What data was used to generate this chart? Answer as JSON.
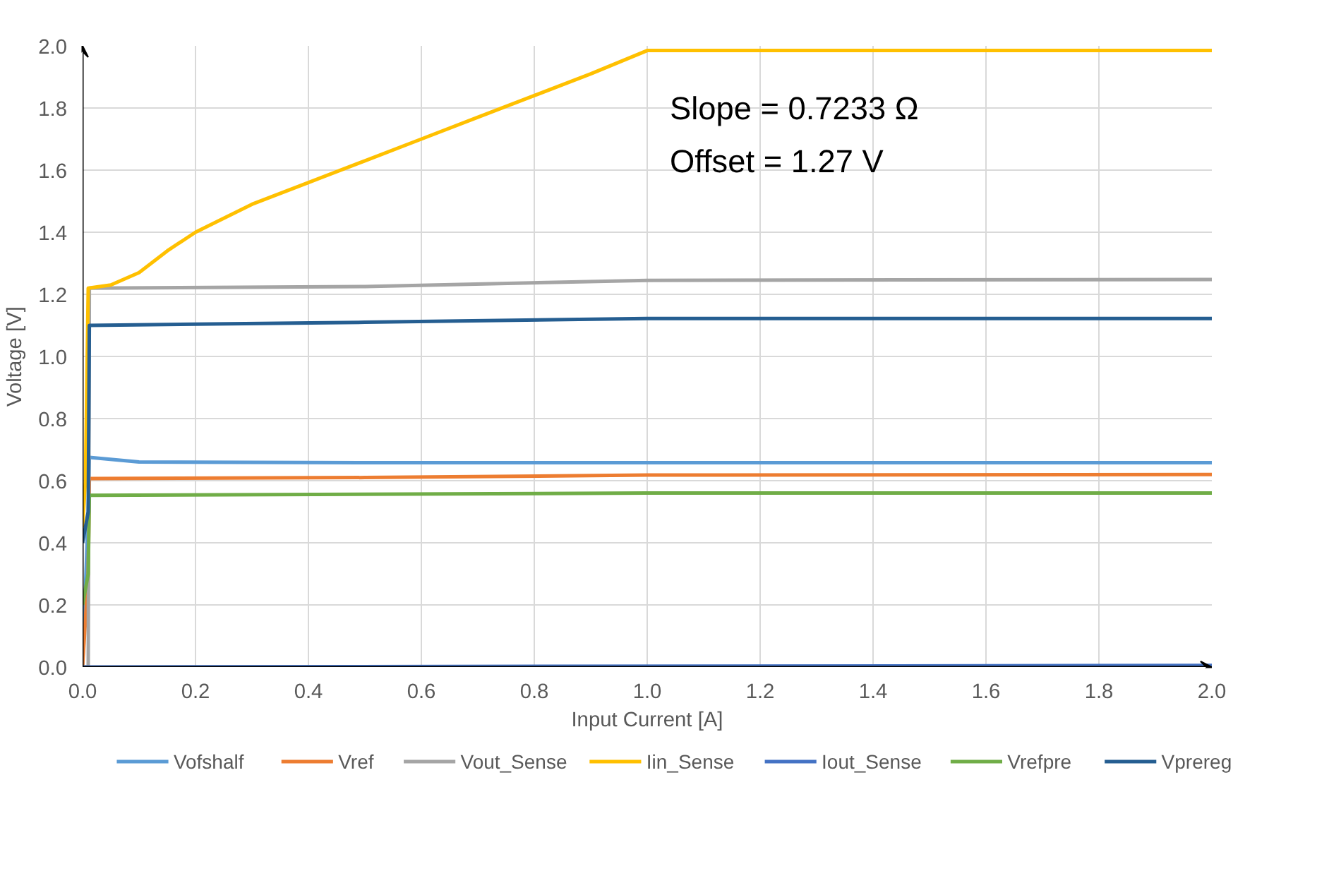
{
  "chart_data": {
    "type": "line",
    "xlabel": "Input Current [A]",
    "ylabel": "Voltage [V]",
    "xlim": [
      0,
      2.0
    ],
    "ylim": [
      0,
      2.0
    ],
    "xticks": [
      {
        "value": 0,
        "label": "0.0"
      },
      0.2,
      0.4,
      0.6,
      0.8,
      {
        "value": 1,
        "label": "1.0"
      },
      1.2,
      1.4,
      1.6,
      1.8,
      {
        "value": 2,
        "label": "2.0"
      }
    ],
    "yticks": [
      {
        "value": 0,
        "label": "0.0"
      },
      0.2,
      0.4,
      0.6,
      0.8,
      {
        "value": 1,
        "label": "1.0"
      },
      1.2,
      1.4,
      1.6,
      1.8,
      {
        "value": 2,
        "label": "2.0"
      }
    ],
    "grid": true,
    "legend": "bottom",
    "marker": "none",
    "line_style": "solid",
    "annotations": [
      "Slope = 0.7233 Ω",
      "Offset = 1.27 V"
    ],
    "series": [
      {
        "name": "Vofshalf",
        "color": "#5b9bd5",
        "x": [
          0,
          0.01,
          0.012,
          0.1,
          0.5,
          1.0,
          2.0
        ],
        "values": [
          0,
          0.5,
          0.675,
          0.66,
          0.658,
          0.658,
          0.658
        ]
      },
      {
        "name": "Vref",
        "color": "#ed7d31",
        "x": [
          0,
          0.01,
          0.012,
          0.5,
          1.0,
          2.0
        ],
        "values": [
          0,
          0.3,
          0.607,
          0.61,
          0.618,
          0.62
        ]
      },
      {
        "name": "Vout_Sense",
        "color": "#a5a5a5",
        "x": [
          0,
          0.01,
          0.012,
          0.5,
          1.0,
          2.0
        ],
        "values": [
          0,
          0,
          1.22,
          1.225,
          1.245,
          1.248
        ]
      },
      {
        "name": "Iin_Sense",
        "color": "#ffc000",
        "x": [
          0,
          0.005,
          0.01,
          0.05,
          0.1,
          0.15,
          0.2,
          0.3,
          0.4,
          0.5,
          0.6,
          0.7,
          0.8,
          0.9,
          1.0,
          2.0
        ],
        "values": [
          0.45,
          0.6,
          1.22,
          1.23,
          1.27,
          1.34,
          1.4,
          1.49,
          1.56,
          1.63,
          1.7,
          1.77,
          1.84,
          1.91,
          1.985,
          1.985
        ]
      },
      {
        "name": "Iout_Sense",
        "color": "#4472c4",
        "x": [
          0,
          2.0
        ],
        "values": [
          0,
          0.005
        ]
      },
      {
        "name": "Vrefpre",
        "color": "#70ad47",
        "x": [
          0,
          0.01,
          0.012,
          1.0,
          2.0
        ],
        "values": [
          0.2,
          0.3,
          0.553,
          0.56,
          0.56
        ]
      },
      {
        "name": "Vprereg",
        "color": "#255e91",
        "x": [
          0,
          0.01,
          0.012,
          0.5,
          1.0,
          2.0
        ],
        "values": [
          0.4,
          0.5,
          1.1,
          1.11,
          1.122,
          1.122
        ]
      }
    ]
  }
}
